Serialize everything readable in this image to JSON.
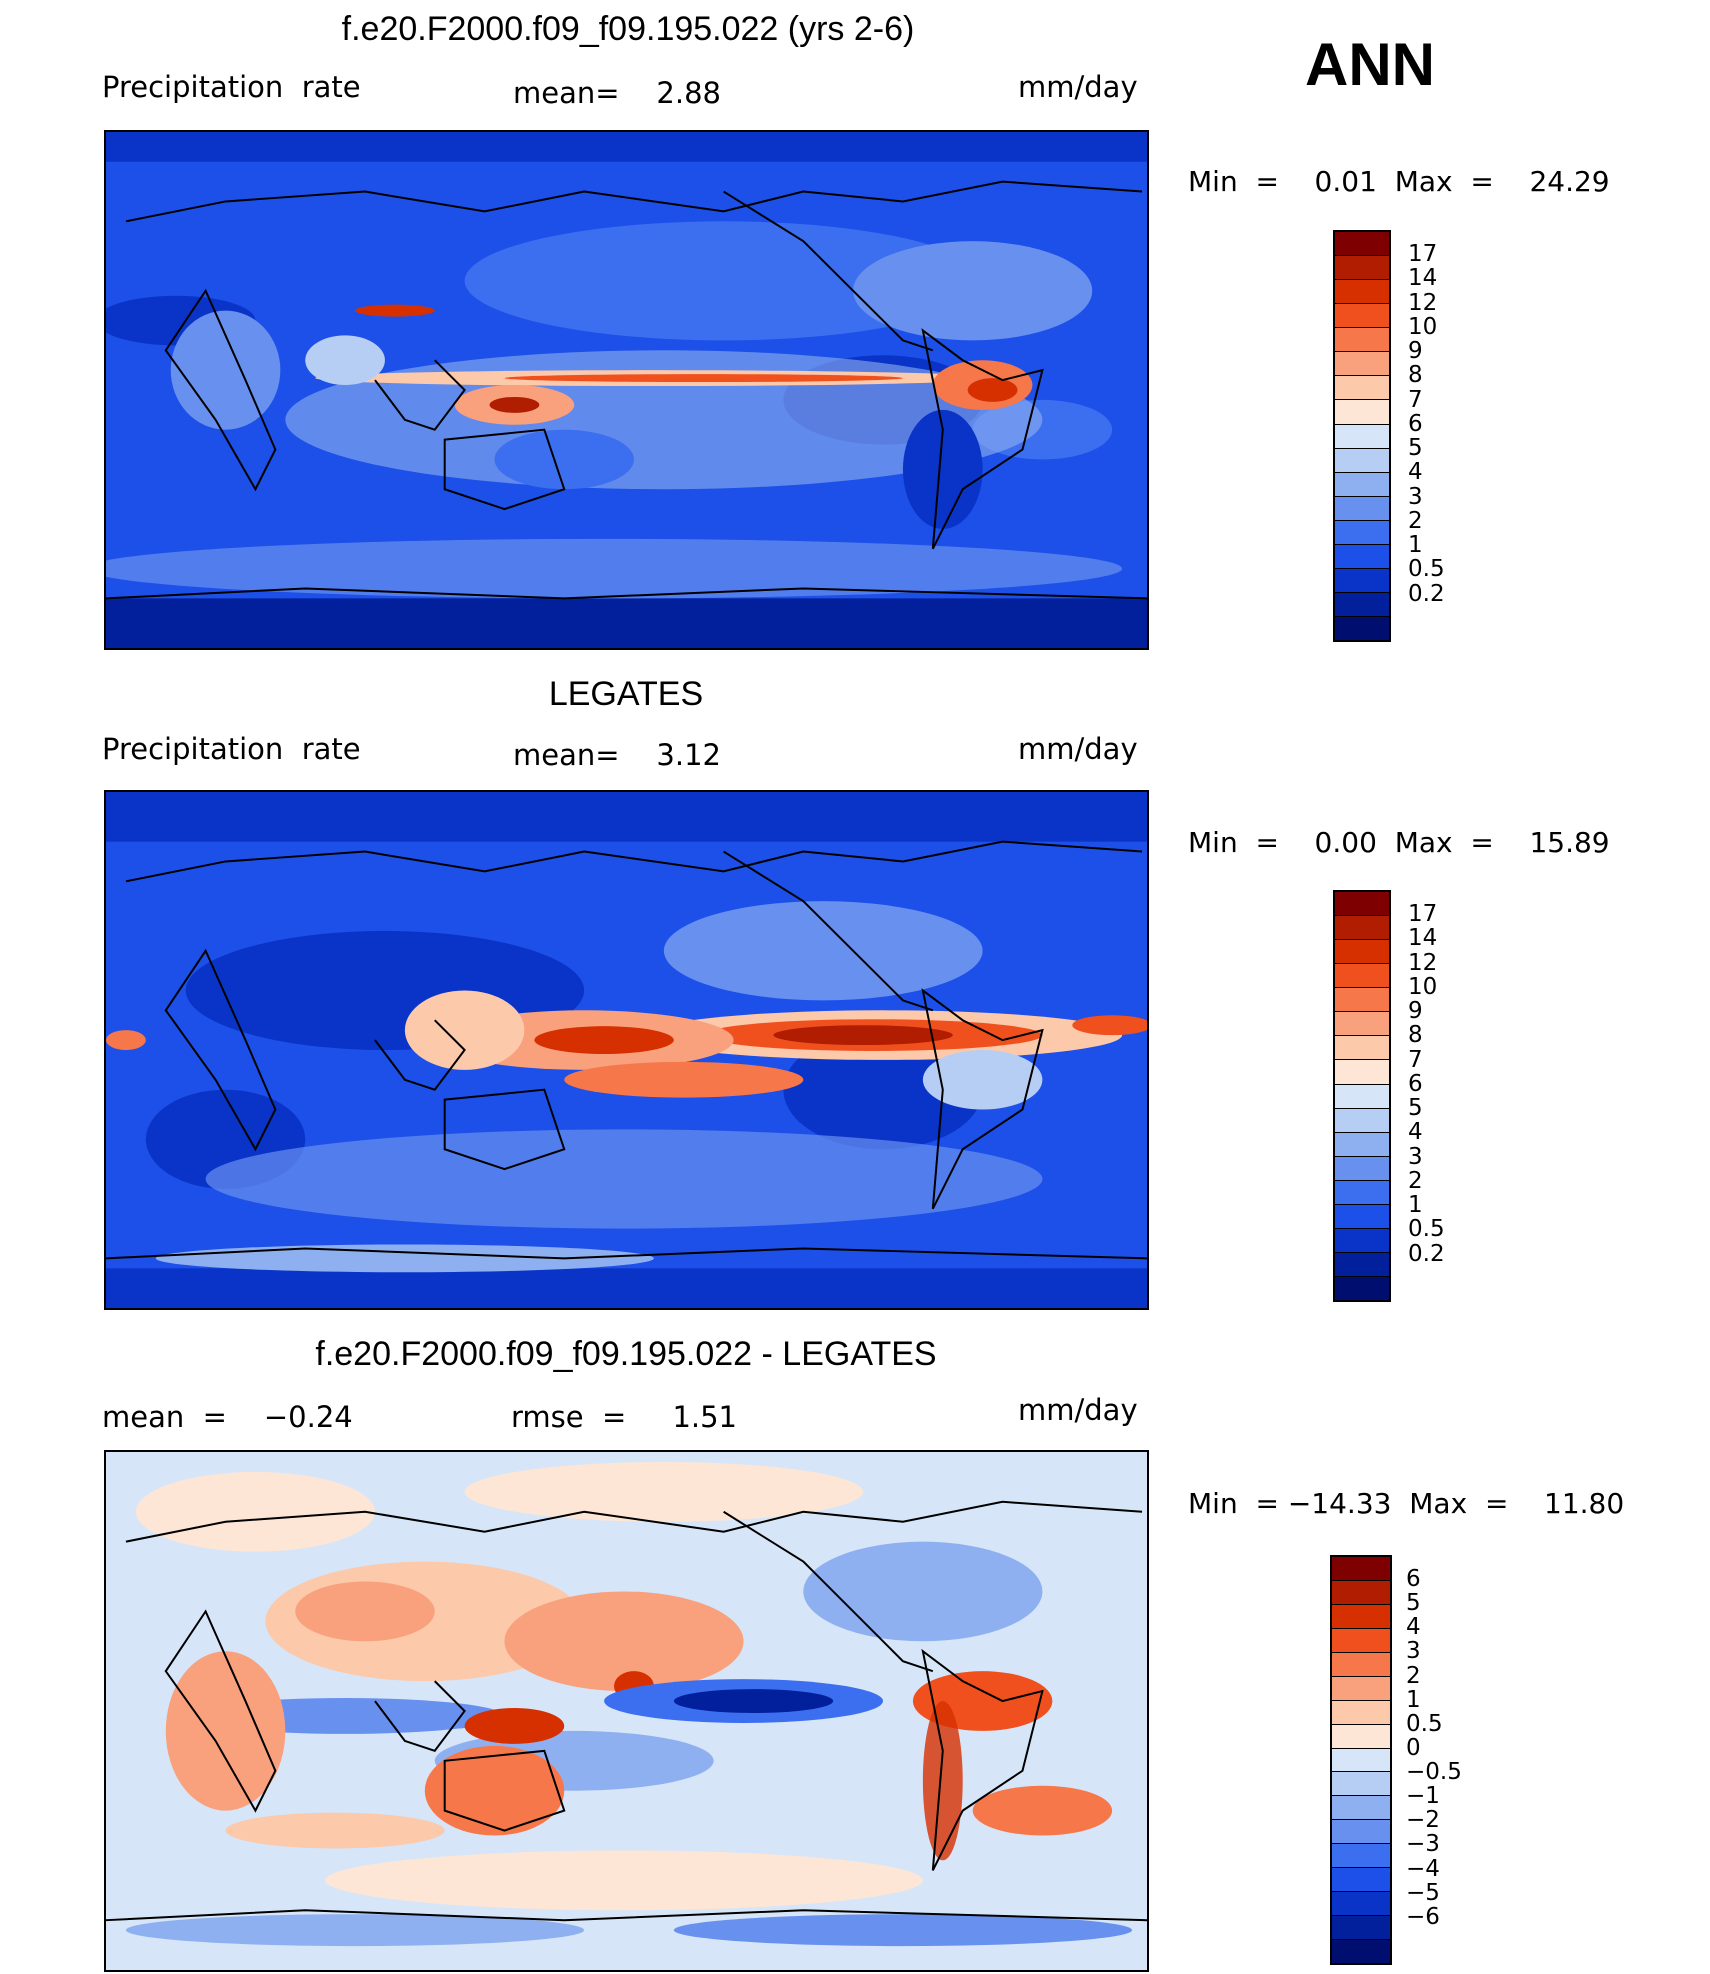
{
  "header": {
    "season": "ANN"
  },
  "panels": [
    {
      "title": "f.e20.F2000.f09_f09.195.022 (yrs 2-6)",
      "left_label": "Precipitation  rate",
      "center_label": "mean=    2.88",
      "units": "mm/day",
      "minmax": "Min  =    0.01  Max  =    24.29",
      "colorbar": {
        "colors": [
          "#7f0000",
          "#b01d00",
          "#d63000",
          "#f0501e",
          "#f6774a",
          "#f9a07c",
          "#fcc9ab",
          "#fde6d6",
          "#d6e6f8",
          "#b6cdf4",
          "#8fb0f0",
          "#6890ef",
          "#3c6ef0",
          "#1c50e8",
          "#0a34c8",
          "#03209c",
          "#000e70"
        ],
        "labels": [
          "17",
          "14",
          "12",
          "10",
          "9",
          "8",
          "7",
          "6",
          "5",
          "4",
          "3",
          "2",
          "1",
          "0.5",
          "0.2"
        ]
      }
    },
    {
      "title": "LEGATES",
      "left_label": "Precipitation  rate",
      "center_label": "mean=    3.12",
      "units": "mm/day",
      "minmax": "Min  =    0.00  Max  =    15.89",
      "colorbar": {
        "colors": [
          "#7f0000",
          "#b01d00",
          "#d63000",
          "#f0501e",
          "#f6774a",
          "#f9a07c",
          "#fcc9ab",
          "#fde6d6",
          "#d6e6f8",
          "#b6cdf4",
          "#8fb0f0",
          "#6890ef",
          "#3c6ef0",
          "#1c50e8",
          "#0a34c8",
          "#03209c",
          "#000e70"
        ],
        "labels": [
          "17",
          "14",
          "12",
          "10",
          "9",
          "8",
          "7",
          "6",
          "5",
          "4",
          "3",
          "2",
          "1",
          "0.5",
          "0.2"
        ]
      }
    },
    {
      "title": "f.e20.F2000.f09_f09.195.022 - LEGATES",
      "left_label": "mean  =    −0.24",
      "center_label": "rmse  =     1.51",
      "units": "mm/day",
      "minmax": "Min  = −14.33  Max  =    11.80",
      "colorbar": {
        "colors": [
          "#7f0000",
          "#b01d00",
          "#d63000",
          "#f0501e",
          "#f6774a",
          "#f9a07c",
          "#fcc9ab",
          "#fde6d6",
          "#d6e6f8",
          "#b6cdf4",
          "#8fb0f0",
          "#6890ef",
          "#3c6ef0",
          "#1c50e8",
          "#0a34c8",
          "#03209c",
          "#000e70"
        ],
        "labels": [
          "6",
          "5",
          "4",
          "3",
          "2",
          "1",
          "0.5",
          "0",
          "−0.5",
          "−1",
          "−2",
          "−3",
          "−4",
          "−5",
          "−6"
        ]
      }
    }
  ]
}
